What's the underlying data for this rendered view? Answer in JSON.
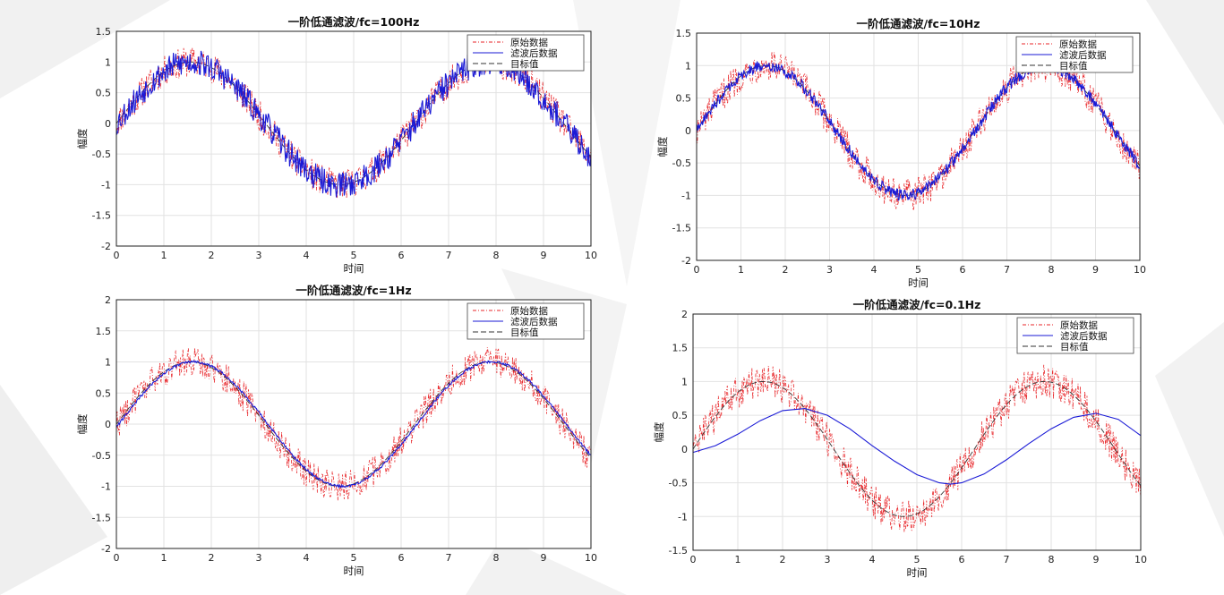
{
  "chart_data": [
    {
      "type": "line",
      "title": "一阶低通滤波/fc=100Hz",
      "xlabel": "时间",
      "ylabel": "幅度",
      "xlim": [
        0,
        10
      ],
      "ylim": [
        -2,
        1.5
      ],
      "xticks": [
        "0",
        "1",
        "2",
        "3",
        "4",
        "5",
        "6",
        "7",
        "8",
        "9",
        "10"
      ],
      "yticks": [
        "-2",
        "-1.5",
        "-1",
        "-0.5",
        "0",
        "0.5",
        "1",
        "1.5"
      ],
      "grid": true,
      "legend_position": "top-right",
      "series": [
        {
          "name": "原始数据",
          "style": "dash-dot",
          "color": "#e8262a",
          "noise": 0.25
        },
        {
          "name": "滤波后数据",
          "style": "solid",
          "color": "#1a1ad6",
          "kind": "filtered",
          "fc": 100,
          "noise": 0.22
        },
        {
          "name": "目标值",
          "style": "dashed",
          "color": "#333333",
          "kind": "target"
        }
      ]
    },
    {
      "type": "line",
      "title": "一阶低通滤波/fc=10Hz",
      "xlabel": "时间",
      "ylabel": "幅度",
      "xlim": [
        0,
        10
      ],
      "ylim": [
        -2,
        1.5
      ],
      "xticks": [
        "0",
        "1",
        "2",
        "3",
        "4",
        "5",
        "6",
        "7",
        "8",
        "9",
        "10"
      ],
      "yticks": [
        "-2",
        "-1.5",
        "-1",
        "-0.5",
        "0",
        "0.5",
        "1",
        "1.5"
      ],
      "grid": true,
      "legend_position": "top-right",
      "series": [
        {
          "name": "原始数据",
          "style": "dash-dot",
          "color": "#e8262a",
          "noise": 0.25
        },
        {
          "name": "滤波后数据",
          "style": "solid",
          "color": "#1a1ad6",
          "kind": "filtered",
          "fc": 10,
          "noise": 0.09
        },
        {
          "name": "目标值",
          "style": "dashed",
          "color": "#333333",
          "kind": "target"
        }
      ]
    },
    {
      "type": "line",
      "title": "一阶低通滤波/fc=1Hz",
      "xlabel": "时间",
      "ylabel": "幅度",
      "xlim": [
        0,
        10
      ],
      "ylim": [
        -2,
        2
      ],
      "xticks": [
        "0",
        "1",
        "2",
        "3",
        "4",
        "5",
        "6",
        "7",
        "8",
        "9",
        "10"
      ],
      "yticks": [
        "-2",
        "-1.5",
        "-1",
        "-0.5",
        "0",
        "0.5",
        "1",
        "1.5",
        "2"
      ],
      "grid": true,
      "legend_position": "top-right",
      "series": [
        {
          "name": "原始数据",
          "style": "dash-dot",
          "color": "#e8262a",
          "noise": 0.25
        },
        {
          "name": "滤波后数据",
          "style": "solid",
          "color": "#1a1ad6",
          "kind": "filtered",
          "fc": 1,
          "noise": 0.02
        },
        {
          "name": "目标值",
          "style": "dashed",
          "color": "#333333",
          "kind": "target"
        }
      ]
    },
    {
      "type": "line",
      "title": "一阶低通滤波/fc=0.1Hz",
      "xlabel": "时间",
      "ylabel": "幅度",
      "xlim": [
        0,
        10
      ],
      "ylim": [
        -1.5,
        2
      ],
      "xticks": [
        "0",
        "1",
        "2",
        "3",
        "4",
        "5",
        "6",
        "7",
        "8",
        "9",
        "10"
      ],
      "yticks": [
        "-1.5",
        "-1",
        "-0.5",
        "0",
        "0.5",
        "1",
        "1.5",
        "2"
      ],
      "grid": true,
      "legend_position": "top-right",
      "series": [
        {
          "name": "原始数据",
          "style": "dash-dot",
          "color": "#e8262a",
          "noise": 0.25
        },
        {
          "name": "滤波后数据",
          "style": "solid",
          "color": "#1a1ad6",
          "kind": "filtered",
          "fc": 0.1,
          "x": [
            0,
            0.5,
            1,
            1.5,
            2,
            2.5,
            3,
            3.5,
            4,
            4.5,
            5,
            5.5,
            5.75,
            6,
            6.5,
            7,
            7.5,
            8,
            8.5,
            9,
            9.5,
            10
          ],
          "values": [
            -0.05,
            0.05,
            0.22,
            0.42,
            0.57,
            0.6,
            0.5,
            0.3,
            0.05,
            -0.18,
            -0.38,
            -0.5,
            -0.52,
            -0.5,
            -0.37,
            -0.16,
            0.08,
            0.3,
            0.47,
            0.53,
            0.44,
            0.2
          ]
        },
        {
          "name": "目标值",
          "style": "dashed",
          "color": "#333333",
          "kind": "target"
        }
      ]
    }
  ]
}
